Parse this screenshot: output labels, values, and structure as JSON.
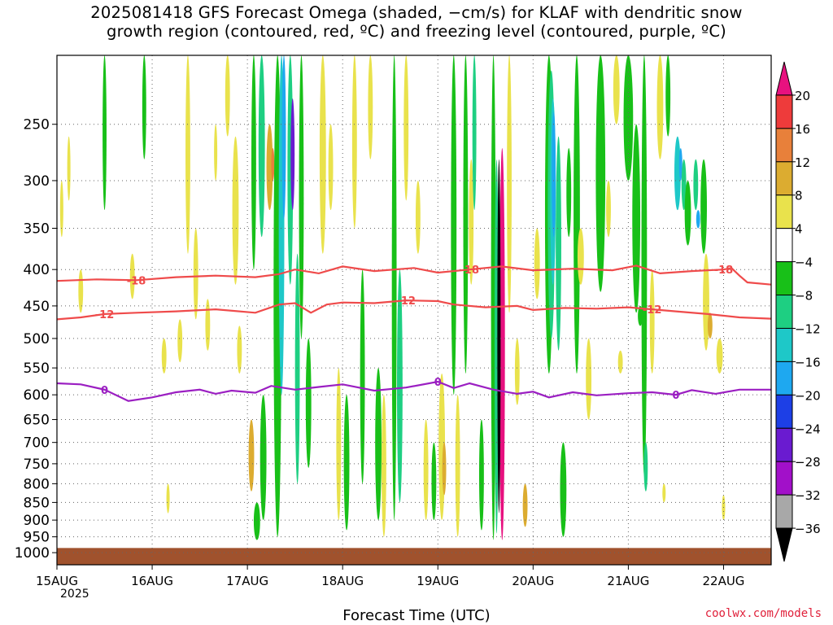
{
  "header": {
    "title_line1": "2025081418 GFS Forecast Omega (shaded, −cm/s) for KLAF with dendritic snow",
    "title_line2": "growth region (contoured, red, ºC) and freezing level (contoured, purple, ºC)"
  },
  "footer": {
    "credit": "coolwx.com/models",
    "year_label": "2025"
  },
  "colors": {
    "ground": "#a0522d",
    "dendritic_contour": "#ef4b4b",
    "freezing_contour": "#9b1fc2",
    "grid": "#666666"
  },
  "chart_data": {
    "type": "heatmap",
    "title": "2025081418 GFS Forecast Omega (shaded, −cm/s) for KLAF with dendritic snow growth region (contoured, red, ºC) and freezing level (contoured, purple, ºC)",
    "xlabel": "Forecast Time (UTC)",
    "ylabel": "",
    "y_scale": "log-pressure (inverted)",
    "y_range_hPa": [
      1040,
      200
    ],
    "x_range_hours": [
      0,
      90
    ],
    "grid": true,
    "x_ticks": [
      "15AUG",
      "16AUG",
      "17AUG",
      "18AUG",
      "19AUG",
      "20AUG",
      "21AUG",
      "22AUG"
    ],
    "x_tick_hours": [
      0,
      12,
      24,
      36,
      48,
      60,
      72,
      84
    ],
    "y_ticks": [
      250,
      300,
      350,
      400,
      450,
      500,
      550,
      600,
      650,
      700,
      750,
      800,
      850,
      900,
      950,
      1000
    ],
    "ground_pressure_hPa": 985,
    "colorbar": {
      "position": "right",
      "labels": [
        "20",
        "16",
        "12",
        "8",
        "4",
        "−4",
        "−8",
        "−12",
        "−16",
        "−20",
        "−24",
        "−28",
        "−32",
        "−36"
      ],
      "bands": [
        {
          "range": ">20",
          "color": "#e7117f"
        },
        {
          "range": "16 to 20",
          "color": "#ee3b3b"
        },
        {
          "range": "12 to 16",
          "color": "#e8803a"
        },
        {
          "range": "8 to 12",
          "color": "#dcac30"
        },
        {
          "range": "4 to 8",
          "color": "#e9e24c"
        },
        {
          "range": "-4 to 4",
          "color": "#ffffff"
        },
        {
          "range": "-8 to -4",
          "color": "#18c018"
        },
        {
          "range": "-12 to -8",
          "color": "#1ecf82"
        },
        {
          "range": "-16 to -12",
          "color": "#1ec8c8"
        },
        {
          "range": "-20 to -16",
          "color": "#1ea8f0"
        },
        {
          "range": "-24 to -20",
          "color": "#1d3fe6"
        },
        {
          "range": "-28 to -24",
          "color": "#6a1bd0"
        },
        {
          "range": "-32 to -28",
          "color": "#a210c9"
        },
        {
          "range": "-36 to -32",
          "color": "#a8a8a8"
        },
        {
          "range": "<-36",
          "color": "#000000"
        }
      ]
    },
    "contours": [
      {
        "label": "-18",
        "color": "#ef4b4b",
        "points": [
          [
            0,
            415
          ],
          [
            5,
            413
          ],
          [
            10,
            414
          ],
          [
            15,
            410
          ],
          [
            20,
            408
          ],
          [
            25,
            410
          ],
          [
            28,
            406
          ],
          [
            30,
            400
          ],
          [
            33,
            405
          ],
          [
            36,
            396
          ],
          [
            40,
            402
          ],
          [
            45,
            398
          ],
          [
            48,
            404
          ],
          [
            52,
            400
          ],
          [
            56,
            396
          ],
          [
            60,
            401
          ],
          [
            65,
            399
          ],
          [
            70,
            401
          ],
          [
            73,
            395
          ],
          [
            76,
            405
          ],
          [
            80,
            402
          ],
          [
            84,
            400
          ],
          [
            85,
            398
          ],
          [
            86,
            408
          ],
          [
            87,
            417
          ],
          [
            90,
            420
          ]
        ]
      },
      {
        "label": "-12",
        "color": "#ef4b4b",
        "points": [
          [
            0,
            470
          ],
          [
            3,
            467
          ],
          [
            6,
            462
          ],
          [
            10,
            460
          ],
          [
            15,
            458
          ],
          [
            20,
            455
          ],
          [
            25,
            460
          ],
          [
            28,
            448
          ],
          [
            30,
            446
          ],
          [
            32,
            460
          ],
          [
            34,
            448
          ],
          [
            36,
            445
          ],
          [
            40,
            446
          ],
          [
            44,
            442
          ],
          [
            48,
            443
          ],
          [
            50,
            448
          ],
          [
            54,
            452
          ],
          [
            58,
            450
          ],
          [
            60,
            456
          ],
          [
            64,
            453
          ],
          [
            68,
            454
          ],
          [
            72,
            452
          ],
          [
            75,
            455
          ],
          [
            78,
            458
          ],
          [
            82,
            462
          ],
          [
            86,
            467
          ],
          [
            90,
            469
          ]
        ]
      },
      {
        "label": "0",
        "color": "#9b1fc2",
        "points": [
          [
            0,
            578
          ],
          [
            3,
            580
          ],
          [
            6,
            590
          ],
          [
            9,
            612
          ],
          [
            12,
            605
          ],
          [
            15,
            595
          ],
          [
            18,
            590
          ],
          [
            20,
            598
          ],
          [
            22,
            592
          ],
          [
            25,
            596
          ],
          [
            27,
            583
          ],
          [
            30,
            590
          ],
          [
            33,
            585
          ],
          [
            36,
            580
          ],
          [
            40,
            592
          ],
          [
            44,
            586
          ],
          [
            48,
            575
          ],
          [
            50,
            587
          ],
          [
            52,
            578
          ],
          [
            55,
            590
          ],
          [
            58,
            598
          ],
          [
            60,
            594
          ],
          [
            62,
            605
          ],
          [
            65,
            595
          ],
          [
            68,
            601
          ],
          [
            72,
            597
          ],
          [
            75,
            595
          ],
          [
            78,
            600
          ],
          [
            80,
            591
          ],
          [
            83,
            598
          ],
          [
            86,
            590
          ],
          [
            90,
            590
          ]
        ]
      }
    ]
  }
}
